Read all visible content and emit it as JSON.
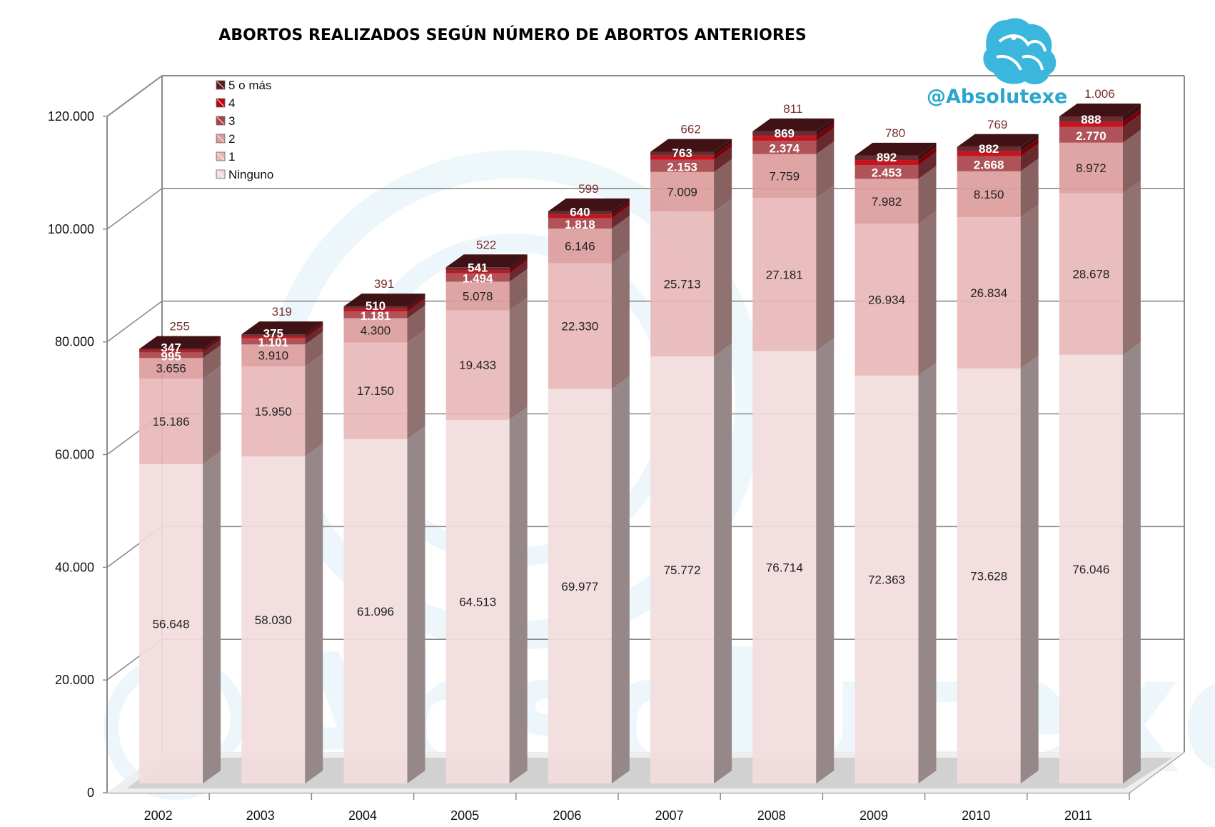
{
  "chart_data": {
    "type": "bar",
    "stacked": true,
    "style": "3d-stacked-column",
    "title": "ABORTOS REALIZADOS SEGÚN NÚMERO DE ABORTOS ANTERIORES",
    "xlabel": "",
    "ylabel": "",
    "ylim": [
      0,
      120000
    ],
    "ytick_labels": [
      "0",
      "20.000",
      "40.000",
      "60.000",
      "80.000",
      "100.000",
      "120.000"
    ],
    "ytick_values": [
      0,
      20000,
      40000,
      60000,
      80000,
      100000,
      120000
    ],
    "grid": true,
    "legend_position": "top-left",
    "categories": [
      "2002",
      "2003",
      "2004",
      "2005",
      "2006",
      "2007",
      "2008",
      "2009",
      "2010",
      "2011"
    ],
    "series": [
      {
        "name": "Ninguno",
        "color": "#f2dcdc",
        "values": [
          56648,
          58030,
          61096,
          64513,
          69977,
          75772,
          76714,
          72363,
          73628,
          76046
        ],
        "labels": [
          "56.648",
          "58.030",
          "61.096",
          "64.513",
          "69.977",
          "75.772",
          "76.714",
          "72.363",
          "73.628",
          "76.046"
        ]
      },
      {
        "name": "1",
        "color": "#e8b8b8",
        "values": [
          15186,
          15950,
          17150,
          19433,
          22330,
          25713,
          27181,
          26934,
          26834,
          28678
        ],
        "labels": [
          "15.186",
          "15.950",
          "17.150",
          "19.433",
          "22.330",
          "25.713",
          "27.181",
          "26.934",
          "26.834",
          "28.678"
        ]
      },
      {
        "name": "2",
        "color": "#dc9c9c",
        "values": [
          3656,
          3910,
          4300,
          5078,
          6146,
          7009,
          7759,
          7982,
          8150,
          8972
        ],
        "labels": [
          "3.656",
          "3.910",
          "4.300",
          "5.078",
          "6.146",
          "7.009",
          "7.759",
          "7.982",
          "8.150",
          "8.972"
        ]
      },
      {
        "name": "3",
        "color": "#a8444a",
        "values": [
          995,
          1101,
          1181,
          1494,
          1818,
          2153,
          2374,
          2453,
          2668,
          2770
        ],
        "labels": [
          "995",
          "1.101",
          "1.181",
          "1.494",
          "1.818",
          "2.153",
          "2.374",
          "2.453",
          "2.668",
          "2.770"
        ]
      },
      {
        "name": "4",
        "color": "#c0000c",
        "values": [
          347,
          375,
          510,
          541,
          640,
          763,
          869,
          892,
          882,
          888
        ],
        "labels": [
          "347",
          "375",
          "510",
          "541",
          "640",
          "763",
          "869",
          "892",
          "882",
          "888"
        ]
      },
      {
        "name": "5 o más",
        "color": "#5c1a1e",
        "values": [
          255,
          319,
          391,
          522,
          599,
          662,
          811,
          780,
          769,
          1006
        ],
        "labels": [
          "255",
          "319",
          "391",
          "522",
          "599",
          "662",
          "811",
          "780",
          "769",
          "1.006"
        ]
      }
    ]
  },
  "watermark": {
    "handle": "@Absolutexe",
    "icon": "griffin-logo",
    "color": "#2aa6cf"
  }
}
